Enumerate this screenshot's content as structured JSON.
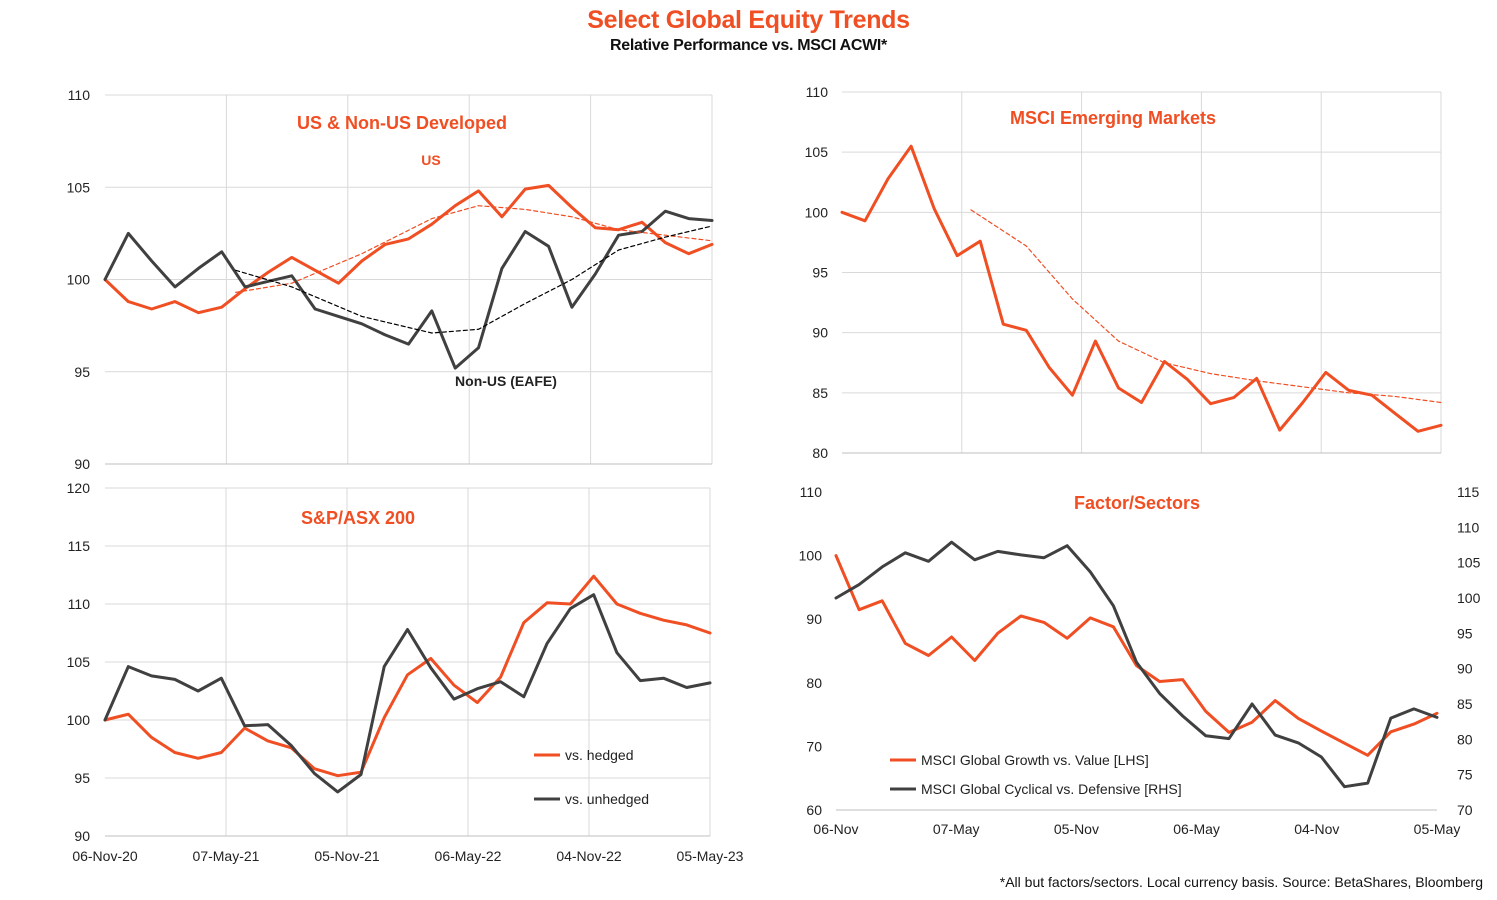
{
  "header": {
    "title": "Select Global Equity Trends",
    "subtitle": "Relative Performance vs. MSCI ACWI*",
    "source": "*All but factors/sectors.  Local currency  basis.  Source: BetaShares, Bloomberg"
  },
  "colors": {
    "orange": "#F04E23",
    "dark": "#404040",
    "black": "#000000",
    "grid": "#D9D9D9"
  },
  "chart_data": [
    {
      "id": "us",
      "type": "line",
      "title": "US & Non-US  Developed",
      "x_tick_labels": [
        "06-Nov-20",
        "07-May-21",
        "05-Nov-21",
        "06-May-22",
        "04-Nov-22",
        "05-May-23"
      ],
      "x_tick_labels_shown": false,
      "ylim": [
        90,
        110
      ],
      "yticks": [
        90,
        95,
        100,
        105,
        110
      ],
      "grid": true,
      "annotations": [
        "US",
        "Non-US (EAFE)"
      ],
      "series": [
        {
          "name": "US",
          "style": "solid",
          "color": "#F04E23",
          "x": [
            0,
            5,
            10,
            15,
            20,
            25,
            30,
            35,
            40,
            45,
            50,
            55,
            60,
            65,
            70,
            75,
            80,
            85,
            90,
            95,
            100,
            105,
            110,
            115,
            120,
            125,
            130
          ],
          "values": [
            100,
            98.8,
            98.4,
            98.8,
            98.2,
            98.5,
            99.5,
            100.4,
            101.2,
            100.5,
            99.8,
            101,
            101.9,
            102.2,
            103,
            104,
            104.8,
            103.4,
            104.9,
            105.1,
            103.9,
            102.8,
            102.7,
            103.1,
            102,
            101.4,
            101.9
          ]
        },
        {
          "name": "Non-US (EAFE)",
          "style": "solid",
          "color": "#404040",
          "x": [
            0,
            5,
            10,
            15,
            20,
            25,
            30,
            35,
            40,
            45,
            50,
            55,
            60,
            65,
            70,
            75,
            80,
            85,
            90,
            95,
            100,
            105,
            110,
            115,
            120,
            125,
            130
          ],
          "values": [
            100,
            102.5,
            101,
            99.6,
            100.6,
            101.5,
            99.6,
            99.9,
            100.2,
            98.4,
            98,
            97.6,
            97,
            96.5,
            98.3,
            95.2,
            96.3,
            100.6,
            102.6,
            101.8,
            98.5,
            100.3,
            102.4,
            102.6,
            103.7,
            103.3,
            103.2
          ]
        },
        {
          "style": "dashed",
          "color": "#F04E23",
          "x": [
            28,
            40,
            55,
            70,
            80,
            90,
            100,
            110,
            120,
            130
          ],
          "values": [
            99.3,
            99.8,
            101.4,
            103.3,
            104,
            103.8,
            103.4,
            102.7,
            102.4,
            102.1
          ]
        },
        {
          "style": "dashed",
          "color": "#000000",
          "x": [
            28,
            40,
            55,
            70,
            80,
            90,
            100,
            110,
            120,
            130
          ],
          "values": [
            100.5,
            99.6,
            98,
            97.1,
            97.3,
            98.7,
            100,
            101.6,
            102.3,
            102.9
          ]
        }
      ]
    },
    {
      "id": "em",
      "type": "line",
      "title": "MSCI Emerging Markets",
      "x_tick_labels": [
        "06-Nov-20",
        "07-May-21",
        "05-Nov-21",
        "06-May-22",
        "04-Nov-22",
        "05-May-23"
      ],
      "x_tick_labels_shown": false,
      "ylim": [
        80,
        110
      ],
      "yticks": [
        80,
        85,
        90,
        95,
        100,
        105,
        110
      ],
      "grid": true,
      "series": [
        {
          "name": "MSCI Emerging Markets",
          "style": "solid",
          "color": "#F04E23",
          "x": [
            0,
            5,
            10,
            15,
            20,
            25,
            30,
            35,
            40,
            45,
            50,
            55,
            60,
            65,
            70,
            75,
            80,
            85,
            90,
            95,
            100,
            105,
            110,
            115,
            120,
            125,
            130
          ],
          "values": [
            100,
            99.3,
            102.8,
            105.5,
            100.3,
            96.4,
            97.6,
            90.7,
            90.2,
            87.1,
            84.8,
            89.3,
            85.4,
            84.2,
            87.6,
            86.1,
            84.1,
            84.6,
            86.2,
            81.9,
            84.2,
            86.7,
            85.2,
            84.8,
            83.3,
            81.8,
            82.3
          ]
        },
        {
          "style": "dashed",
          "color": "#F04E23",
          "x": [
            28,
            40,
            50,
            60,
            70,
            80,
            90,
            100,
            110,
            120,
            130
          ],
          "values": [
            100.2,
            97.2,
            92.8,
            89.3,
            87.5,
            86.6,
            86,
            85.5,
            85,
            84.7,
            84.2
          ]
        }
      ]
    },
    {
      "id": "asx",
      "type": "line",
      "title": "S&P/ASX 200",
      "x_tick_labels": [
        "06-Nov-20",
        "07-May-21",
        "05-Nov-21",
        "06-May-22",
        "04-Nov-22",
        "05-May-23"
      ],
      "ylim": [
        90,
        120
      ],
      "yticks": [
        90,
        95,
        100,
        105,
        110,
        115,
        120
      ],
      "grid": true,
      "legend_position": "bottom-right",
      "series": [
        {
          "name": "vs. hedged",
          "style": "solid",
          "color": "#F04E23",
          "x": [
            0,
            5,
            10,
            15,
            20,
            25,
            30,
            35,
            40,
            45,
            50,
            55,
            60,
            65,
            70,
            75,
            80,
            85,
            90,
            95,
            100,
            105,
            110,
            115,
            120,
            125,
            130
          ],
          "values": [
            100,
            100.5,
            98.5,
            97.2,
            96.7,
            97.2,
            99.3,
            98.2,
            97.6,
            95.8,
            95.2,
            95.5,
            100.2,
            103.9,
            105.3,
            103,
            101.5,
            103.7,
            108.4,
            110.1,
            110,
            112.4,
            110,
            109.2,
            108.6,
            108.2,
            107.5
          ]
        },
        {
          "name": "vs. unhedged",
          "style": "solid",
          "color": "#404040",
          "x": [
            0,
            5,
            10,
            15,
            20,
            25,
            30,
            35,
            40,
            45,
            50,
            55,
            60,
            65,
            70,
            75,
            80,
            85,
            90,
            95,
            100,
            105,
            110,
            115,
            120,
            125,
            130
          ],
          "values": [
            100,
            104.6,
            103.8,
            103.5,
            102.5,
            103.6,
            99.5,
            99.6,
            97.8,
            95.4,
            93.8,
            95.3,
            104.6,
            107.8,
            104.5,
            101.8,
            102.7,
            103.3,
            102,
            106.6,
            109.6,
            110.8,
            105.8,
            103.4,
            103.6,
            102.8,
            103.2
          ]
        }
      ]
    },
    {
      "id": "factors",
      "type": "line",
      "title": "Factor/Sectors",
      "x_tick_labels": [
        "06-Nov",
        "07-May",
        "05-Nov",
        "06-May",
        "04-Nov",
        "05-May"
      ],
      "ylim": [
        60,
        110
      ],
      "yticks": [
        60,
        70,
        80,
        90,
        100,
        110
      ],
      "y2lim": [
        70,
        115
      ],
      "y2ticks": [
        70,
        75,
        80,
        85,
        90,
        95,
        100,
        105,
        110,
        115
      ],
      "grid": false,
      "legend_position": "bottom-left",
      "series": [
        {
          "name": "MSCI Global Growth vs. Value [LHS]",
          "style": "solid",
          "color": "#F04E23",
          "axis": "left",
          "x": [
            0,
            5,
            10,
            15,
            20,
            25,
            30,
            35,
            40,
            45,
            50,
            55,
            60,
            65,
            70,
            75,
            80,
            85,
            90,
            95,
            100,
            105,
            110,
            115,
            120,
            125,
            130
          ],
          "values": [
            100,
            91.5,
            92.9,
            86.2,
            84.3,
            87.2,
            83.5,
            87.8,
            90.5,
            89.5,
            87,
            90.2,
            88.8,
            82.7,
            80.2,
            80.5,
            75.5,
            72.2,
            73.8,
            77.2,
            74.4,
            72.4,
            70.5,
            68.6,
            72.3,
            73.5,
            75.2
          ]
        },
        {
          "name": "MSCI Global Cyclical vs. Defensive [RHS]",
          "style": "solid",
          "color": "#404040",
          "axis": "right",
          "x": [
            0,
            5,
            10,
            15,
            20,
            25,
            30,
            35,
            40,
            45,
            50,
            55,
            60,
            65,
            70,
            75,
            80,
            85,
            90,
            95,
            100,
            105,
            110,
            115,
            120,
            125,
            130
          ],
          "values": [
            100,
            101.9,
            104.4,
            106.4,
            105.2,
            107.9,
            105.4,
            106.6,
            106.1,
            105.7,
            107.4,
            103.7,
            98.9,
            90.9,
            86.5,
            83.3,
            80.5,
            80.1,
            85,
            80.6,
            79.5,
            77.5,
            73.3,
            73.8,
            83,
            84.3,
            83.1
          ]
        }
      ]
    }
  ]
}
